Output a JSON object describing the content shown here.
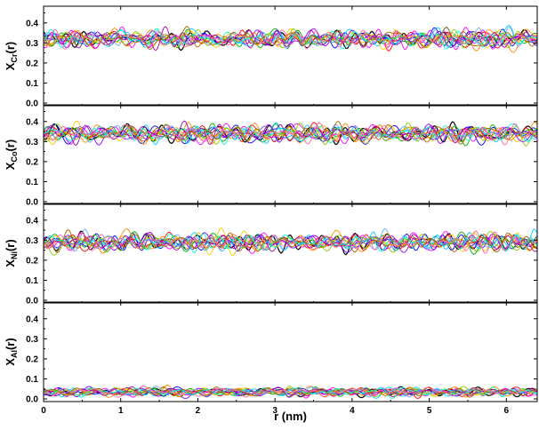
{
  "chart_data": {
    "type": "line",
    "description_note": "",
    "x_axis": {
      "label": "r (nm)",
      "range": [
        0,
        6.4
      ],
      "ticks": [
        0,
        1,
        2,
        3,
        4,
        5,
        6
      ],
      "tick_labels": [
        "0",
        "1",
        "2",
        "3",
        "4",
        "5",
        "6"
      ]
    },
    "series_colors": [
      "#000000",
      "#ff0000",
      "#0000ff",
      "#00aa00",
      "#ff00ff",
      "#00ccff",
      "#ffcc00",
      "#8800ff",
      "#ff8800",
      "#88cc00",
      "#66aaff",
      "#aa00aa",
      "#00ffcc",
      "#aa6600",
      "#ff66aa"
    ],
    "panels": [
      {
        "ylabel_main": "X",
        "ylabel_sub": "Cr",
        "ylabel_suffix": "(r)",
        "ylim": [
          0,
          0.47
        ],
        "yticks": [
          0.0,
          0.1,
          0.2,
          0.3,
          0.4
        ],
        "ytick_labels": [
          "0.0",
          "0.1",
          "0.2",
          "0.3",
          "0.4"
        ],
        "mean": 0.32,
        "fluctuation": 0.035
      },
      {
        "ylabel_main": "X",
        "ylabel_sub": "Co",
        "ylabel_suffix": "(r)",
        "ylim": [
          0,
          0.47
        ],
        "yticks": [
          0.0,
          0.1,
          0.2,
          0.3,
          0.4
        ],
        "ytick_labels": [
          "0.0",
          "0.1",
          "0.2",
          "0.3",
          "0.4"
        ],
        "mean": 0.34,
        "fluctuation": 0.035
      },
      {
        "ylabel_main": "X",
        "ylabel_sub": "Ni",
        "ylabel_suffix": "(r)",
        "ylim": [
          0,
          0.47
        ],
        "yticks": [
          0.0,
          0.1,
          0.2,
          0.3,
          0.4
        ],
        "ytick_labels": [
          "0.0",
          "0.1",
          "0.2",
          "0.3",
          "0.4"
        ],
        "mean": 0.29,
        "fluctuation": 0.035
      },
      {
        "ylabel_main": "X",
        "ylabel_sub": "Al",
        "ylabel_suffix": "(r)",
        "ylim": [
          0,
          0.47
        ],
        "yticks": [
          0.0,
          0.1,
          0.2,
          0.3,
          0.4
        ],
        "ytick_labels": [
          "0.0",
          "0.1",
          "0.2",
          "0.3",
          "0.4"
        ],
        "mean": 0.035,
        "fluctuation": 0.018
      }
    ],
    "grid": false,
    "legend": "none"
  }
}
